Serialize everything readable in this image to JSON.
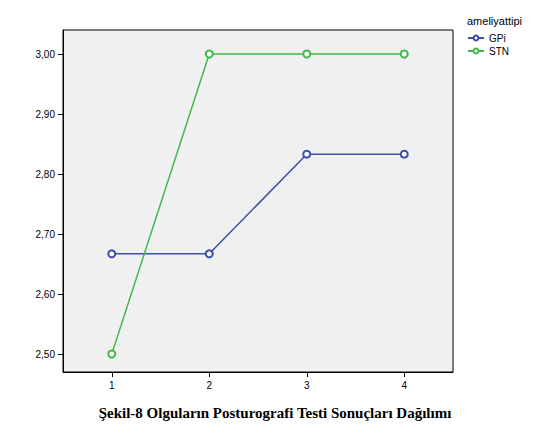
{
  "chart_data": {
    "type": "line",
    "title": "Şekil-8 Olguların Posturografi Testi Sonuçları Dağılımı",
    "legend_title": "ameliyattipi",
    "categories": [
      "1",
      "2",
      "3",
      "4"
    ],
    "series": [
      {
        "name": "GPi",
        "color": "#3b4fa8",
        "values": [
          2.667,
          2.667,
          2.833,
          2.833
        ]
      },
      {
        "name": "STN",
        "color": "#43b84a",
        "values": [
          2.5,
          3.0,
          3.0,
          3.0
        ]
      }
    ],
    "ylim": [
      2.47,
      3.04
    ],
    "yticks": [
      {
        "value": 2.5,
        "label": "2,50"
      },
      {
        "value": 2.6,
        "label": "2,60"
      },
      {
        "value": 2.7,
        "label": "2,70"
      },
      {
        "value": 2.8,
        "label": "2,80"
      },
      {
        "value": 2.9,
        "label": "2,90"
      },
      {
        "value": 3.0,
        "label": "3,00"
      }
    ],
    "grid": false,
    "legend": "top-right",
    "marker": "emptyCircle"
  }
}
